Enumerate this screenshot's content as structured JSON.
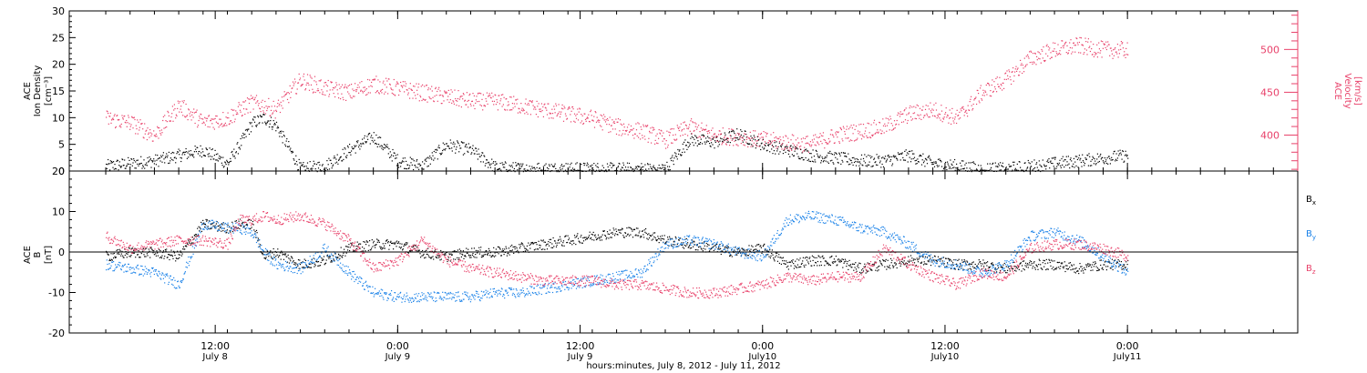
{
  "colors": {
    "black": "#000000",
    "pink": "#e8416a",
    "blue": "#1a82e8"
  },
  "chart_data": [
    {
      "type": "scatter",
      "panel": "top",
      "ylabel_left": [
        "ACE",
        "Ion Density",
        "[cm⁻³]"
      ],
      "ylabel_right": [
        "ACE",
        "Velocity",
        "[km/s]"
      ],
      "ylim_left": [
        0,
        30
      ],
      "yticks_left": [
        0,
        5,
        10,
        15,
        20,
        25,
        30
      ],
      "ylim_right": [
        358,
        545
      ],
      "yticks_right": [
        400,
        450,
        500
      ],
      "series": [
        {
          "name": "",
          "axis": "left",
          "color": "black",
          "x": [
            0,
            2,
            4,
            6,
            8,
            10,
            11,
            12,
            13,
            14,
            16,
            18,
            20,
            22,
            24,
            26,
            28,
            30,
            32,
            34,
            36,
            38,
            40,
            42,
            44,
            46,
            48,
            50,
            52,
            54,
            56,
            58,
            60,
            62,
            64,
            66,
            68,
            70,
            72,
            74,
            76,
            78,
            80,
            82,
            84
          ],
          "y": [
            1,
            1.5,
            2,
            3,
            4,
            1.5,
            5,
            9,
            10,
            8.5,
            0.5,
            1,
            4,
            6.5,
            2,
            1,
            5,
            4,
            0.8,
            0.5,
            0.5,
            0.5,
            0.5,
            0.5,
            0.5,
            0.5,
            6,
            5.5,
            7,
            5,
            4,
            3,
            2.5,
            2,
            2,
            3,
            1.5,
            1,
            0.5,
            0.5,
            1,
            1.5,
            2,
            2.5,
            3
          ]
        },
        {
          "name": "",
          "axis": "right",
          "color": "pink",
          "x": [
            0,
            2,
            4,
            6,
            8,
            10,
            11,
            12,
            13,
            14,
            16,
            18,
            20,
            22,
            24,
            26,
            28,
            30,
            32,
            34,
            36,
            38,
            40,
            42,
            44,
            46,
            48,
            50,
            52,
            54,
            56,
            58,
            60,
            62,
            64,
            66,
            68,
            70,
            72,
            74,
            76,
            78,
            80,
            82,
            84
          ],
          "y": [
            420,
            415,
            400,
            435,
            415,
            420,
            430,
            438,
            435,
            430,
            465,
            455,
            450,
            460,
            455,
            450,
            445,
            440,
            440,
            435,
            430,
            425,
            420,
            410,
            405,
            395,
            410,
            400,
            398,
            395,
            392,
            390,
            400,
            405,
            410,
            425,
            430,
            420,
            450,
            465,
            490,
            500,
            505,
            500,
            500
          ]
        }
      ]
    },
    {
      "type": "scatter",
      "panel": "bottom",
      "ylabel_left": [
        "ACE",
        "B",
        "[nT]"
      ],
      "ylim_left": [
        -20,
        20
      ],
      "yticks_left": [
        -20,
        -10,
        0,
        10,
        20
      ],
      "zero_line": true,
      "legend_position": "right",
      "series": [
        {
          "name": "Bx",
          "color": "black",
          "x": [
            0,
            2,
            4,
            6,
            8,
            10,
            11,
            12,
            13,
            14,
            16,
            18,
            20,
            22,
            24,
            26,
            28,
            30,
            32,
            34,
            36,
            38,
            40,
            42,
            44,
            46,
            48,
            50,
            52,
            54,
            56,
            58,
            60,
            62,
            64,
            66,
            68,
            70,
            72,
            74,
            76,
            78,
            80,
            82,
            84
          ],
          "y": [
            -1,
            0,
            0,
            -1,
            7,
            6,
            7,
            7,
            -1,
            0,
            -3,
            -2,
            1,
            2,
            2,
            0,
            -1,
            0,
            0,
            1,
            2,
            3,
            4,
            5,
            5,
            3,
            2,
            1,
            0,
            1,
            -3,
            -2,
            -2,
            -4,
            -3,
            -2,
            -2,
            -3,
            -3,
            -4,
            -3,
            -3,
            -4,
            -3,
            -3
          ]
        },
        {
          "name": "By",
          "color": "blue",
          "x": [
            0,
            2,
            4,
            6,
            8,
            10,
            11,
            12,
            13,
            14,
            16,
            18,
            20,
            22,
            24,
            26,
            28,
            30,
            32,
            34,
            36,
            38,
            40,
            42,
            44,
            46,
            48,
            50,
            52,
            54,
            56,
            58,
            60,
            62,
            64,
            66,
            68,
            70,
            72,
            74,
            76,
            78,
            80,
            82,
            84
          ],
          "y": [
            -3,
            -4,
            -5,
            -8,
            7,
            6,
            6,
            5,
            0,
            -3,
            -4,
            1,
            -5,
            -10,
            -11,
            -11,
            -11,
            -11,
            -10,
            -10,
            -9,
            -8,
            -7,
            -6,
            -5,
            2,
            3,
            2,
            0,
            -1,
            8,
            9,
            8,
            6,
            5,
            2,
            -2,
            -3,
            -5,
            -3,
            4,
            5,
            3,
            -1,
            -5
          ]
        },
        {
          "name": "Bz",
          "color": "pink",
          "x": [
            0,
            2,
            4,
            6,
            8,
            10,
            11,
            12,
            13,
            14,
            16,
            18,
            20,
            22,
            24,
            26,
            28,
            30,
            32,
            34,
            36,
            38,
            40,
            42,
            44,
            46,
            48,
            50,
            52,
            54,
            56,
            58,
            60,
            62,
            64,
            66,
            68,
            70,
            72,
            74,
            76,
            78,
            80,
            82,
            84
          ],
          "y": [
            4,
            1,
            2,
            3,
            3,
            2,
            8,
            8,
            9,
            8,
            9,
            7,
            3,
            -4,
            -2,
            3,
            -2,
            -4,
            -5,
            -6,
            -7,
            -7,
            -7,
            -8,
            -8,
            -9,
            -10,
            -10,
            -9,
            -8,
            -6,
            -7,
            -6,
            -6,
            1,
            -3,
            -6,
            -8,
            -5,
            -6,
            1,
            2,
            2,
            1,
            -1
          ]
        }
      ]
    }
  ],
  "time_axis": {
    "xlim_hours": [
      -3,
      98
    ],
    "major_ticks": [
      {
        "hour": 9,
        "top": "12:00",
        "bottom": "July 8"
      },
      {
        "hour": 24,
        "top": "0:00",
        "bottom": "July 9"
      },
      {
        "hour": 39,
        "top": "12:00",
        "bottom": "July 9"
      },
      {
        "hour": 54,
        "top": "0:00",
        "bottom": "July10"
      },
      {
        "hour": 69,
        "top": "12:00",
        "bottom": "July10"
      },
      {
        "hour": 84,
        "top": "0:00",
        "bottom": "July11"
      }
    ],
    "title": "hours:minutes, July  8, 2012 - July 11, 2012"
  },
  "legend": {
    "bx": {
      "base": "B",
      "sub": "x"
    },
    "by": {
      "base": "B",
      "sub": "y"
    },
    "bz": {
      "base": "B",
      "sub": "z"
    }
  }
}
